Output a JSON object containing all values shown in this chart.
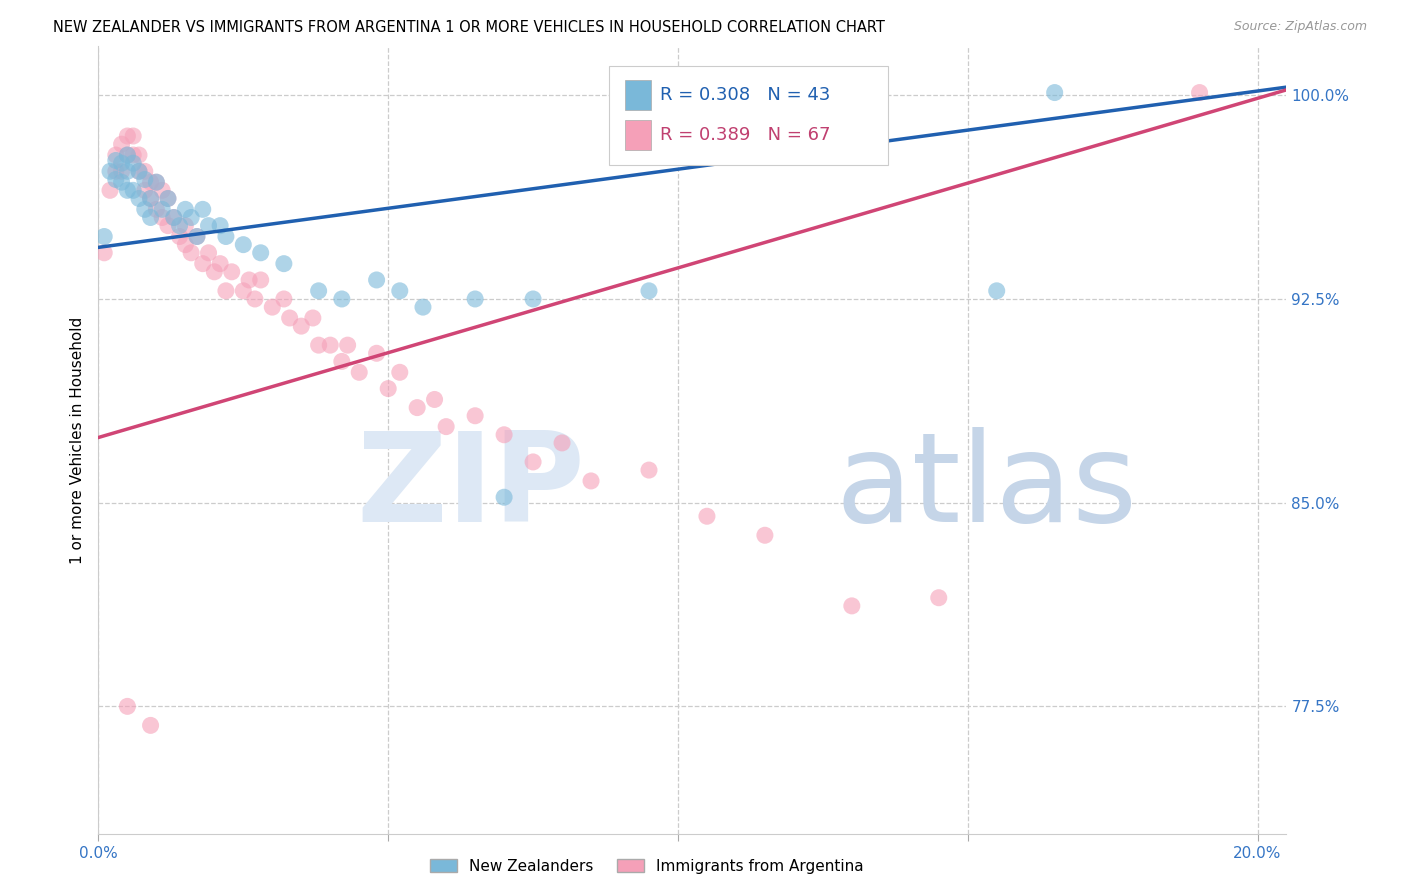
{
  "title": "NEW ZEALANDER VS IMMIGRANTS FROM ARGENTINA 1 OR MORE VEHICLES IN HOUSEHOLD CORRELATION CHART",
  "source": "Source: ZipAtlas.com",
  "ylabel": "1 or more Vehicles in Household",
  "xlim": [
    0.0,
    0.205
  ],
  "ylim": [
    0.728,
    1.018
  ],
  "yticks": [
    0.775,
    0.85,
    0.925,
    1.0
  ],
  "ytick_labels": [
    "77.5%",
    "85.0%",
    "92.5%",
    "100.0%"
  ],
  "xticks": [
    0.0,
    0.05,
    0.1,
    0.15,
    0.2
  ],
  "xtick_labels": [
    "0.0%",
    "",
    "",
    "",
    "20.0%"
  ],
  "R_nz": 0.308,
  "N_nz": 43,
  "R_arg": 0.389,
  "N_arg": 67,
  "color_nz": "#7ab8d9",
  "color_arg": "#f5a0b8",
  "line_color_nz": "#2060b0",
  "line_color_arg": "#d04575",
  "nz_x": [
    0.001,
    0.002,
    0.003,
    0.003,
    0.004,
    0.004,
    0.005,
    0.005,
    0.005,
    0.006,
    0.006,
    0.007,
    0.007,
    0.008,
    0.008,
    0.009,
    0.009,
    0.01,
    0.011,
    0.012,
    0.013,
    0.014,
    0.015,
    0.016,
    0.017,
    0.018,
    0.019,
    0.021,
    0.022,
    0.025,
    0.028,
    0.032,
    0.038,
    0.042,
    0.048,
    0.052,
    0.056,
    0.065,
    0.07,
    0.075,
    0.095,
    0.155,
    0.165
  ],
  "nz_y": [
    0.948,
    0.972,
    0.976,
    0.969,
    0.975,
    0.968,
    0.978,
    0.972,
    0.965,
    0.975,
    0.965,
    0.972,
    0.962,
    0.969,
    0.958,
    0.962,
    0.955,
    0.968,
    0.958,
    0.962,
    0.955,
    0.952,
    0.958,
    0.955,
    0.948,
    0.958,
    0.952,
    0.952,
    0.948,
    0.945,
    0.942,
    0.938,
    0.928,
    0.925,
    0.932,
    0.928,
    0.922,
    0.925,
    0.852,
    0.925,
    0.928,
    0.928,
    1.001
  ],
  "arg_x": [
    0.001,
    0.002,
    0.003,
    0.003,
    0.004,
    0.004,
    0.005,
    0.005,
    0.006,
    0.006,
    0.007,
    0.007,
    0.008,
    0.008,
    0.009,
    0.009,
    0.01,
    0.01,
    0.011,
    0.011,
    0.012,
    0.012,
    0.013,
    0.014,
    0.015,
    0.015,
    0.016,
    0.017,
    0.018,
    0.019,
    0.02,
    0.021,
    0.022,
    0.023,
    0.025,
    0.026,
    0.027,
    0.028,
    0.03,
    0.032,
    0.033,
    0.035,
    0.037,
    0.038,
    0.04,
    0.042,
    0.043,
    0.045,
    0.048,
    0.05,
    0.052,
    0.055,
    0.058,
    0.06,
    0.065,
    0.07,
    0.075,
    0.08,
    0.085,
    0.095,
    0.105,
    0.115,
    0.13,
    0.145,
    0.19,
    0.005,
    0.009
  ],
  "arg_y": [
    0.942,
    0.965,
    0.972,
    0.978,
    0.972,
    0.982,
    0.978,
    0.985,
    0.978,
    0.985,
    0.972,
    0.978,
    0.965,
    0.972,
    0.962,
    0.968,
    0.958,
    0.968,
    0.955,
    0.965,
    0.952,
    0.962,
    0.955,
    0.948,
    0.952,
    0.945,
    0.942,
    0.948,
    0.938,
    0.942,
    0.935,
    0.938,
    0.928,
    0.935,
    0.928,
    0.932,
    0.925,
    0.932,
    0.922,
    0.925,
    0.918,
    0.915,
    0.918,
    0.908,
    0.908,
    0.902,
    0.908,
    0.898,
    0.905,
    0.892,
    0.898,
    0.885,
    0.888,
    0.878,
    0.882,
    0.875,
    0.865,
    0.872,
    0.858,
    0.862,
    0.845,
    0.838,
    0.812,
    0.815,
    1.001,
    0.775,
    0.768
  ]
}
